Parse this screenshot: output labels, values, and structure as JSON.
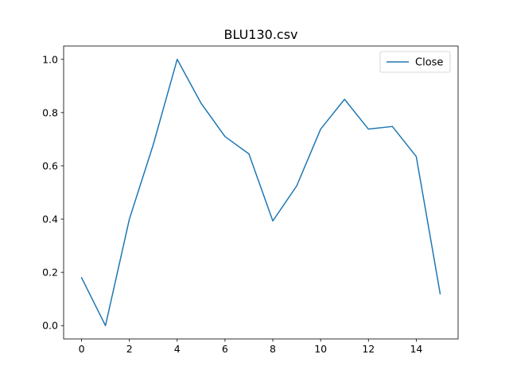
{
  "chart_data": {
    "type": "line",
    "title": "BLU130.csv",
    "xlabel": "",
    "ylabel": "",
    "xlim": [
      -0.75,
      15.75
    ],
    "ylim": [
      -0.05,
      1.05
    ],
    "xticks": [
      0,
      2,
      4,
      6,
      8,
      10,
      12,
      14
    ],
    "xtick_labels": [
      "0",
      "2",
      "4",
      "6",
      "8",
      "10",
      "12",
      "14"
    ],
    "yticks": [
      0.0,
      0.2,
      0.4,
      0.6,
      0.8,
      1.0
    ],
    "ytick_labels": [
      "0.0",
      "0.2",
      "0.4",
      "0.6",
      "0.8",
      "1.0"
    ],
    "grid": false,
    "legend_position": "top-right",
    "series": [
      {
        "name": "Close",
        "color": "#1f77b4",
        "x": [
          0,
          1,
          2,
          3,
          4,
          5,
          6,
          7,
          8,
          9,
          10,
          11,
          12,
          13,
          14,
          15
        ],
        "y": [
          0.18,
          0.0,
          0.4,
          0.68,
          1.0,
          0.835,
          0.71,
          0.645,
          0.393,
          0.525,
          0.738,
          0.85,
          0.738,
          0.748,
          0.635,
          0.12
        ]
      }
    ]
  }
}
